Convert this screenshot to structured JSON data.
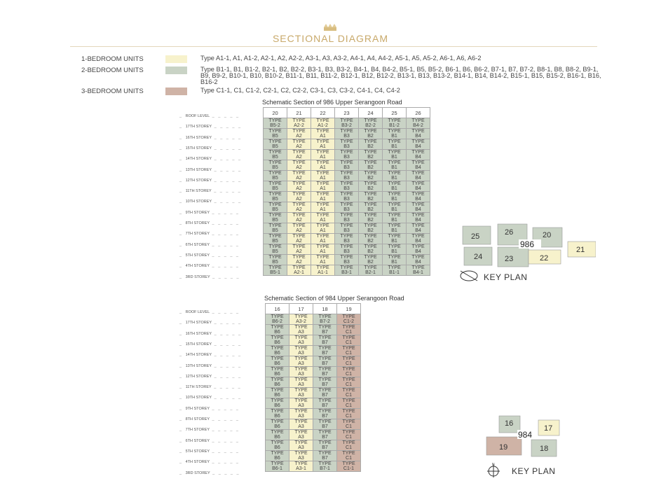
{
  "header": {
    "title": "SECTIONAL DIAGRAM"
  },
  "colors": {
    "one_bedroom": "#f7f2cc",
    "two_bedroom": "#c9d3c5",
    "three_bedroom": "#cfb3a6",
    "title": "#c8a96a"
  },
  "legend": [
    {
      "label": "1-BEDROOM UNITS",
      "category": "one_bedroom",
      "types": "Type A1-1, A1, A1-2, A2-1, A2, A2-2, A3-1, A3, A3-2, A4-1, A4, A4-2, A5-1, A5, A5-2, A6-1, A6, A6-2"
    },
    {
      "label": "2-BEDROOM UNITS",
      "category": "two_bedroom",
      "types": "Type B1-1, B1, B1-2, B2-1, B2, B2-2, B3-1, B3, B3-2, B4-1, B4, B4-2, B5-1, B5, B5-2, B6-1, B6, B6-2, B7-1, B7, B7-2, B8-1, B8, B8-2, B9-1, B9, B9-2, B10-1, B10, B10-2, B11-1, B11, B11-2, B12-1, B12, B12-2, B13-1, B13, B13-2, B14-1, B14, B14-2, B15-1, B15, B15-2, B16-1, B16, B16-2"
    },
    {
      "label": "3-BEDROOM UNITS",
      "category": "three_bedroom",
      "types": "Type C1-1, C1, C1-2, C2-1, C2, C2-2, C3-1, C3, C3-2, C4-1, C4, C4-2"
    }
  ],
  "type_word": "TYPE",
  "storeys": [
    "ROOF LEVEL",
    "17TH STOREY",
    "16TH STOREY",
    "15TH STOREY",
    "14TH STOREY",
    "13TH STOREY",
    "12TH STOREY",
    "11TH STOREY",
    "10TH STOREY",
    "9TH STOREY",
    "8TH STOREY",
    "7TH STOREY",
    "6TH STOREY",
    "5TH STOREY",
    "4TH STOREY",
    "3RD STOREY"
  ],
  "sections": [
    {
      "title": "Schematic Section of 986 Upper Serangoon Road",
      "columns": [
        {
          "stack": "20",
          "category": "two_bedroom",
          "top": "B5-2",
          "typical": "B5",
          "bottom": "B5-1"
        },
        {
          "stack": "21",
          "category": "one_bedroom",
          "top": "A2-2",
          "typical": "A2",
          "bottom": "A2-1"
        },
        {
          "stack": "22",
          "category": "one_bedroom",
          "top": "A1-2",
          "typical": "A1",
          "bottom": "A1-1"
        },
        {
          "stack": "23",
          "category": "two_bedroom",
          "top": "B3-2",
          "typical": "B3",
          "bottom": "B3-1"
        },
        {
          "stack": "24",
          "category": "two_bedroom",
          "top": "B2-2",
          "typical": "B2",
          "bottom": "B2-1"
        },
        {
          "stack": "25",
          "category": "two_bedroom",
          "top": "B1-2",
          "typical": "B1",
          "bottom": "B1-1"
        },
        {
          "stack": "26",
          "category": "two_bedroom",
          "top": "B4-2",
          "typical": "B4",
          "bottom": "B4-1"
        }
      ],
      "key_plan": {
        "label": "KEY PLAN",
        "block": "986",
        "stacks": [
          "25",
          "26",
          "20",
          "24",
          "23",
          "22",
          "21"
        ]
      }
    },
    {
      "title": "Schematic Section of 984 Upper Serangoon Road",
      "columns": [
        {
          "stack": "16",
          "category": "two_bedroom",
          "top": "B6-2",
          "typical": "B6",
          "bottom": "B6-1"
        },
        {
          "stack": "17",
          "category": "one_bedroom",
          "top": "A3-2",
          "typical": "A3",
          "bottom": "A3-1"
        },
        {
          "stack": "18",
          "category": "two_bedroom",
          "top": "B7-2",
          "typical": "B7",
          "bottom": "B7-1"
        },
        {
          "stack": "19",
          "category": "three_bedroom",
          "top": "C1-2",
          "typical": "C1",
          "bottom": "C1-1"
        }
      ],
      "key_plan": {
        "label": "KEY PLAN",
        "block": "984",
        "stacks": [
          "16",
          "17",
          "19",
          "18"
        ],
        "north": "N"
      }
    }
  ]
}
